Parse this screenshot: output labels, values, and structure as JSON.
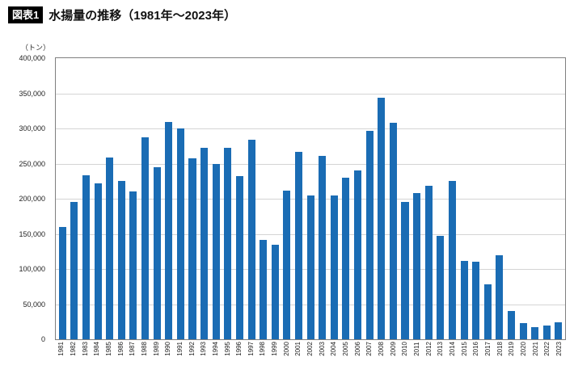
{
  "header": {
    "badge": "図表1",
    "title": "水揚量の推移（1981年〜2023年）"
  },
  "y_axis_unit": "（トン）",
  "chart_data": {
    "type": "bar",
    "title": "水揚量の推移（1981年〜2023年）",
    "xlabel": "",
    "ylabel": "トン",
    "ylim": [
      0,
      400000
    ],
    "ytick_interval": 50000,
    "grid": true,
    "legend": "none",
    "bar_color": "#1a6cb4",
    "categories": [
      "1981",
      "1982",
      "1983",
      "1984",
      "1985",
      "1986",
      "1987",
      "1988",
      "1989",
      "1990",
      "1991",
      "1992",
      "1993",
      "1994",
      "1995",
      "1996",
      "1997",
      "1998",
      "1999",
      "2000",
      "2001",
      "2002",
      "2003",
      "2004",
      "2005",
      "2006",
      "2007",
      "2008",
      "2009",
      "2010",
      "2011",
      "2012",
      "2013",
      "2014",
      "2015",
      "2016",
      "2017",
      "2018",
      "2019",
      "2020",
      "2021",
      "2022",
      "2023"
    ],
    "values": [
      160000,
      195000,
      233000,
      222000,
      259000,
      225000,
      210000,
      287000,
      245000,
      309000,
      300000,
      257000,
      273000,
      250000,
      273000,
      232000,
      284000,
      141000,
      135000,
      211000,
      267000,
      205000,
      261000,
      205000,
      230000,
      240000,
      296000,
      344000,
      308000,
      195000,
      208000,
      218000,
      147000,
      225000,
      112000,
      110000,
      78000,
      119000,
      40000,
      23000,
      17000,
      20000,
      24000
    ]
  }
}
